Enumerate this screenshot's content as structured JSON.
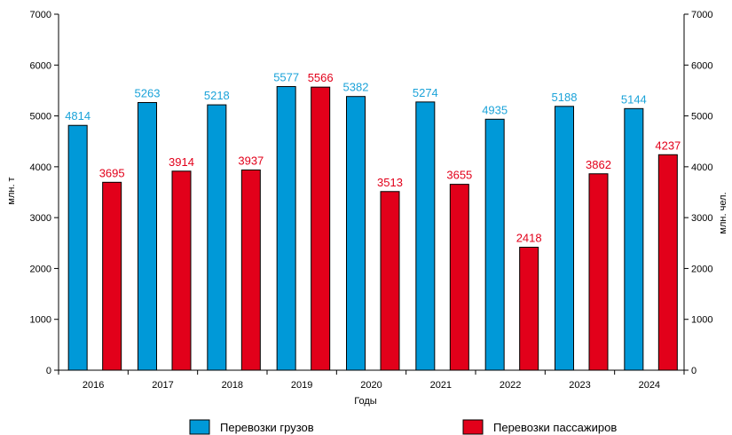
{
  "chart_data": {
    "type": "bar",
    "categories": [
      "2016",
      "2017",
      "2018",
      "2019",
      "2020",
      "2021",
      "2022",
      "2023",
      "2024"
    ],
    "series": [
      {
        "name": "Перевозки грузов",
        "values": [
          4814,
          5263,
          5218,
          5577,
          5382,
          5274,
          4935,
          5188,
          5144
        ],
        "color": "#0099d8",
        "label_color": "#1ba3d9",
        "axis": "left"
      },
      {
        "name": "Перевозки пассажиров",
        "values": [
          3695,
          3914,
          3937,
          5566,
          3513,
          3655,
          2418,
          3862,
          4237
        ],
        "color": "#e2001a",
        "label_color": "#e2001a",
        "axis": "right"
      }
    ],
    "xlabel": "Годы",
    "ylabel_left": "млн. т",
    "ylabel_right": "млн. чел.",
    "ylim": [
      0,
      7000
    ],
    "yticks": [
      "0",
      "1000",
      "2000",
      "3000",
      "4000",
      "5000",
      "6000",
      "7000"
    ],
    "legend_position": "bottom",
    "grid": false
  }
}
